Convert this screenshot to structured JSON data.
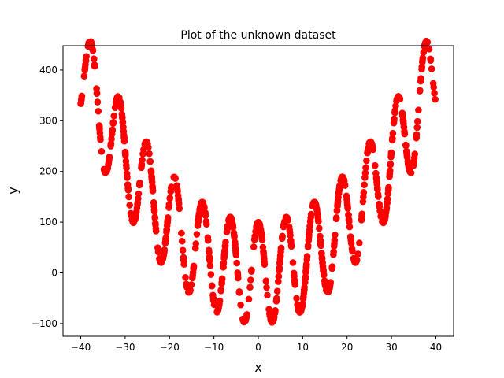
{
  "chart_data": {
    "type": "scatter",
    "title": "Plot of the unknown dataset",
    "xlabel": "x",
    "ylabel": "y",
    "xlim": [
      -44,
      44
    ],
    "ylim": [
      -125,
      448
    ],
    "xticks": [
      -40,
      -30,
      -20,
      -10,
      0,
      10,
      20,
      30,
      40
    ],
    "yticks": [
      -100,
      0,
      100,
      200,
      300,
      400
    ],
    "grid": false,
    "legend": "none",
    "marker_color": "#ff0000",
    "model": "y = 0.25*x^2 + 100*cos(x)",
    "x_range": [
      -40,
      40
    ]
  }
}
